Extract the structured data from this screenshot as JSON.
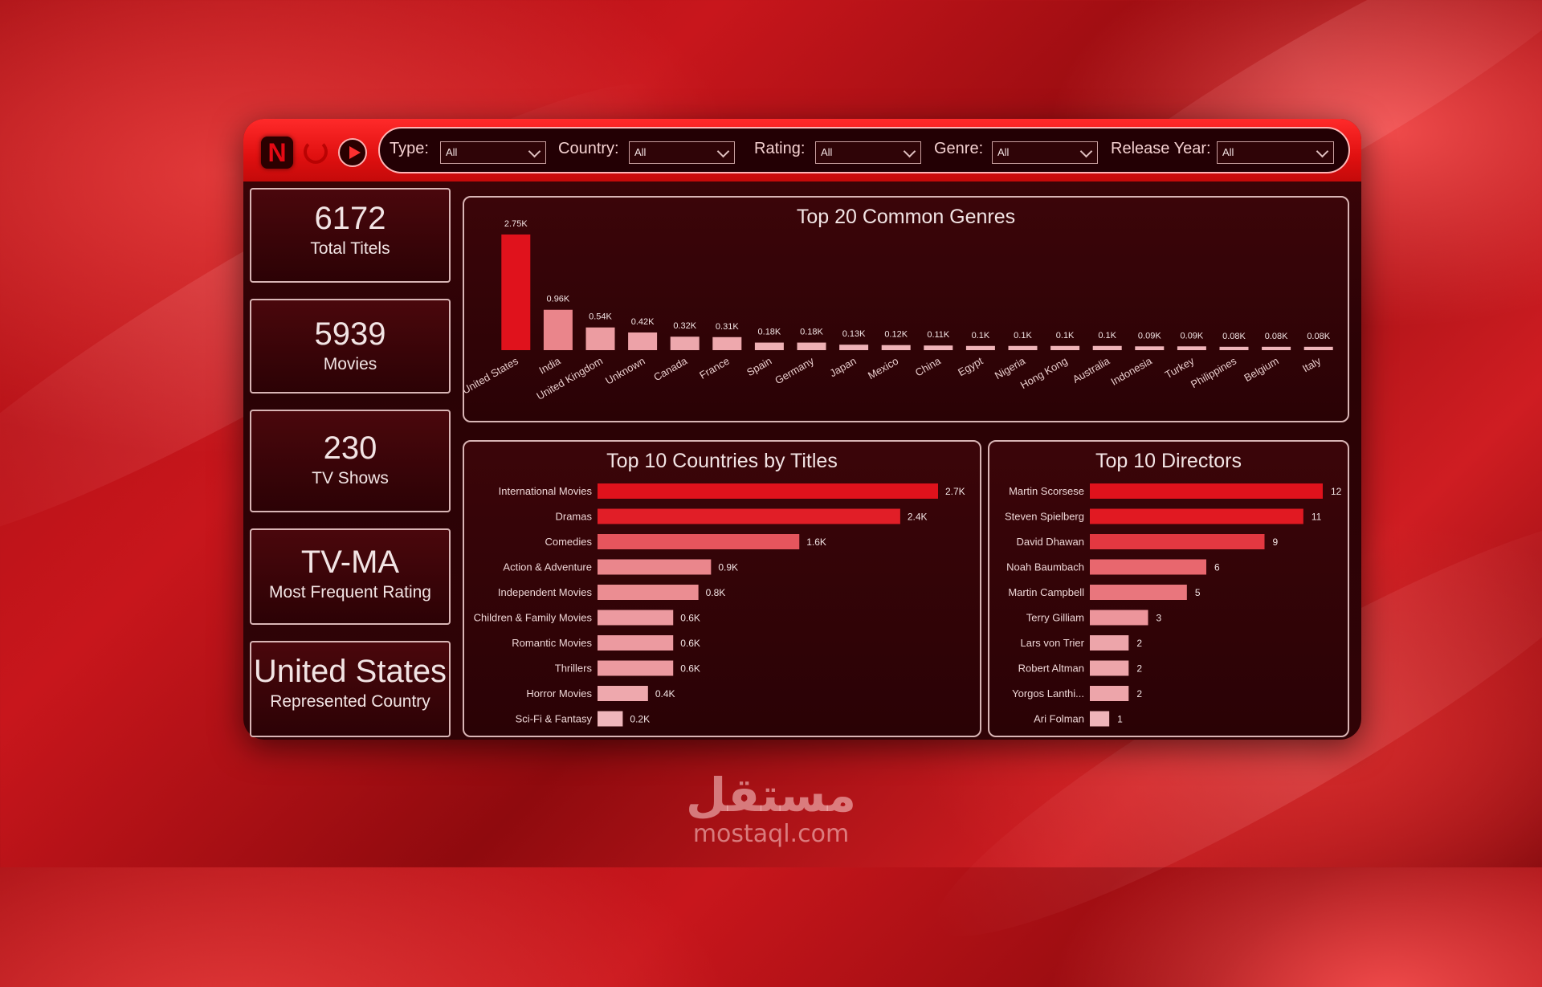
{
  "filters": [
    {
      "label": "Type:",
      "value": "All"
    },
    {
      "label": "Country:",
      "value": "All"
    },
    {
      "label": "Rating:",
      "value": "All"
    },
    {
      "label": "Genre:",
      "value": "All"
    },
    {
      "label": "Release Year:",
      "value": "All"
    }
  ],
  "logo": {
    "letter": "N"
  },
  "kpis": [
    {
      "value": "6172",
      "label": "Total Titels"
    },
    {
      "value": "5939",
      "label": "Movies"
    },
    {
      "value": "230",
      "label": "TV Shows"
    },
    {
      "value": "TV-MA",
      "label": "Most Frequent Rating"
    },
    {
      "value": "United States",
      "label": "Represented Country"
    }
  ],
  "colors": {
    "accent": "#e01018",
    "bar_strong": "#e0121c",
    "bar_light": "#f0c4c8",
    "panel_bg": "#2a0205"
  },
  "watermark": {
    "arabic": "مستقل",
    "url": "mostaql.com"
  },
  "chart_data": [
    {
      "type": "bar",
      "title": "Top 20 Common Genres",
      "categories": [
        "United States",
        "India",
        "United Kingdom",
        "Unknown",
        "Canada",
        "France",
        "Spain",
        "Germany",
        "Japan",
        "Mexico",
        "China",
        "Egypt",
        "Nigeria",
        "Hong Kong",
        "Australia",
        "Indonesia",
        "Turkey",
        "Philippines",
        "Belgium",
        "Italy"
      ],
      "values": [
        2750,
        960,
        540,
        420,
        320,
        310,
        180,
        180,
        130,
        120,
        110,
        100,
        100,
        100,
        100,
        90,
        90,
        80,
        80,
        80
      ],
      "data_labels": [
        "2.75K",
        "0.96K",
        "0.54K",
        "0.42K",
        "0.32K",
        "0.31K",
        "0.18K",
        "0.18K",
        "0.13K",
        "0.12K",
        "0.11K",
        "0.1K",
        "0.1K",
        "0.1K",
        "0.1K",
        "0.09K",
        "0.09K",
        "0.08K",
        "0.08K",
        "0.08K"
      ],
      "ylim": [
        0,
        2750
      ]
    },
    {
      "type": "bar",
      "orientation": "horizontal",
      "title": "Top 10 Countries by Titles",
      "categories": [
        "International Movies",
        "Dramas",
        "Comedies",
        "Action & Adventure",
        "Independent Movies",
        "Children & Family Movies",
        "Romantic Movies",
        "Thrillers",
        "Horror Movies",
        "Sci-Fi & Fantasy"
      ],
      "values": [
        2700,
        2400,
        1600,
        900,
        800,
        600,
        600,
        600,
        400,
        200
      ],
      "data_labels": [
        "2.7K",
        "2.4K",
        "1.6K",
        "0.9K",
        "0.8K",
        "0.6K",
        "0.6K",
        "0.6K",
        "0.4K",
        "0.2K"
      ],
      "xlim": [
        0,
        2700
      ]
    },
    {
      "type": "bar",
      "orientation": "horizontal",
      "title": "Top 10 Directors",
      "categories": [
        "Martin Scorsese",
        "Steven Spielberg",
        "David Dhawan",
        "Noah Baumbach",
        "Martin Campbell",
        "Terry Gilliam",
        "Lars von Trier",
        "Robert Altman",
        "Yorgos Lanthi...",
        "Ari Folman"
      ],
      "values": [
        12,
        11,
        9,
        6,
        5,
        3,
        2,
        2,
        2,
        1
      ],
      "data_labels": [
        "12",
        "11",
        "9",
        "6",
        "5",
        "3",
        "2",
        "2",
        "2",
        "1"
      ],
      "xlim": [
        0,
        12
      ]
    }
  ]
}
